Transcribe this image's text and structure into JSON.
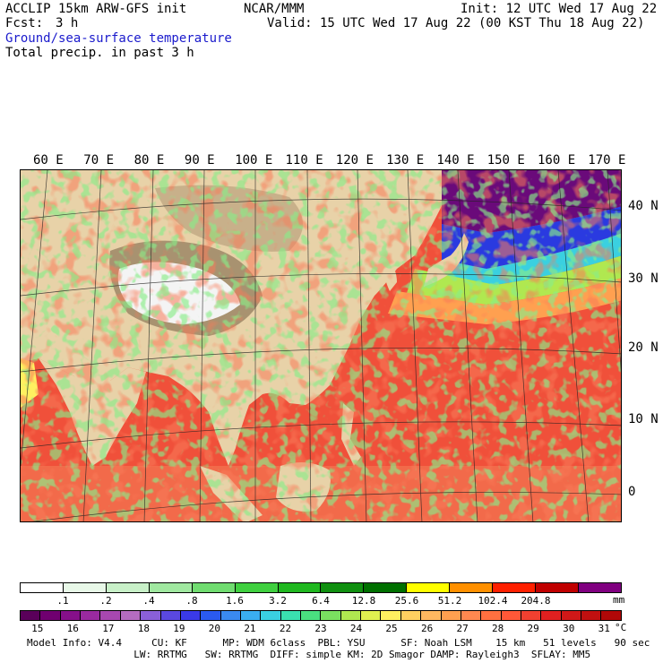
{
  "header": {
    "model_line": "ACCLIP 15km ARW-GFS init",
    "org": "NCAR/MMM",
    "init": "Init: 12 UTC Wed 17 Aug 22",
    "fcst_label": "Fcst:",
    "fcst_value": "3 h",
    "valid": "Valid: 15 UTC Wed 17 Aug 22 (00 KST Thu 18 Aug 22)",
    "field1": "Ground/sea-surface temperature",
    "field2": "Total precip. in past 3 h"
  },
  "map": {
    "lon_labels": [
      "60 E",
      "70 E",
      "80 E",
      "90 E",
      "100 E",
      "110 E",
      "120 E",
      "130 E",
      "140 E",
      "150 E",
      "160 E",
      "170 E"
    ],
    "lat_labels": [
      "40 N",
      "30 N",
      "20 N",
      "10 N",
      "0"
    ]
  },
  "precip_scale": {
    "ticks": [
      ".1",
      ".2",
      ".4",
      ".8",
      "1.6",
      "3.2",
      "6.4",
      "12.8",
      "25.6",
      "51.2",
      "102.4",
      "204.8"
    ],
    "unit": "mm",
    "colors": [
      "#ffffff",
      "#e8f8e8",
      "#c8f0c8",
      "#a0e8a0",
      "#70dc70",
      "#40d040",
      "#20b820",
      "#109010",
      "#007000",
      "#ffff00",
      "#ff9000",
      "#ff2000",
      "#c00000",
      "#800080"
    ]
  },
  "temp_scale": {
    "ticks": [
      "15",
      "16",
      "17",
      "18",
      "19",
      "20",
      "21",
      "22",
      "23",
      "24",
      "25",
      "26",
      "27",
      "28",
      "29",
      "30",
      "31"
    ],
    "unit": "°C",
    "colors": [
      "#5a005a",
      "#700070",
      "#86108a",
      "#9a2aa0",
      "#a848b0",
      "#b46cc0",
      "#8a60d8",
      "#5a48e0",
      "#3a3ae8",
      "#2a5af0",
      "#3a8af0",
      "#3aaef0",
      "#3ad0e0",
      "#3ae0b0",
      "#4ae080",
      "#7ae060",
      "#b0e850",
      "#e0f050",
      "#fff060",
      "#ffd060",
      "#ffb860",
      "#ffa050",
      "#ff8850",
      "#ff7040",
      "#ff5838",
      "#f04030",
      "#e02020",
      "#d01818",
      "#c01010",
      "#b00808"
    ]
  },
  "footer": {
    "line1": "Model Info: V4.4     CU: KF      MP: WDM 6class  PBL: YSU      SF: Noah LSM    15 km   51 levels   90 sec",
    "line2": "                  LW: RRTMG   SW: RRTMG  DIFF: simple KM: 2D Smagor DAMP: Rayleigh3  SFLAY: MM5"
  }
}
